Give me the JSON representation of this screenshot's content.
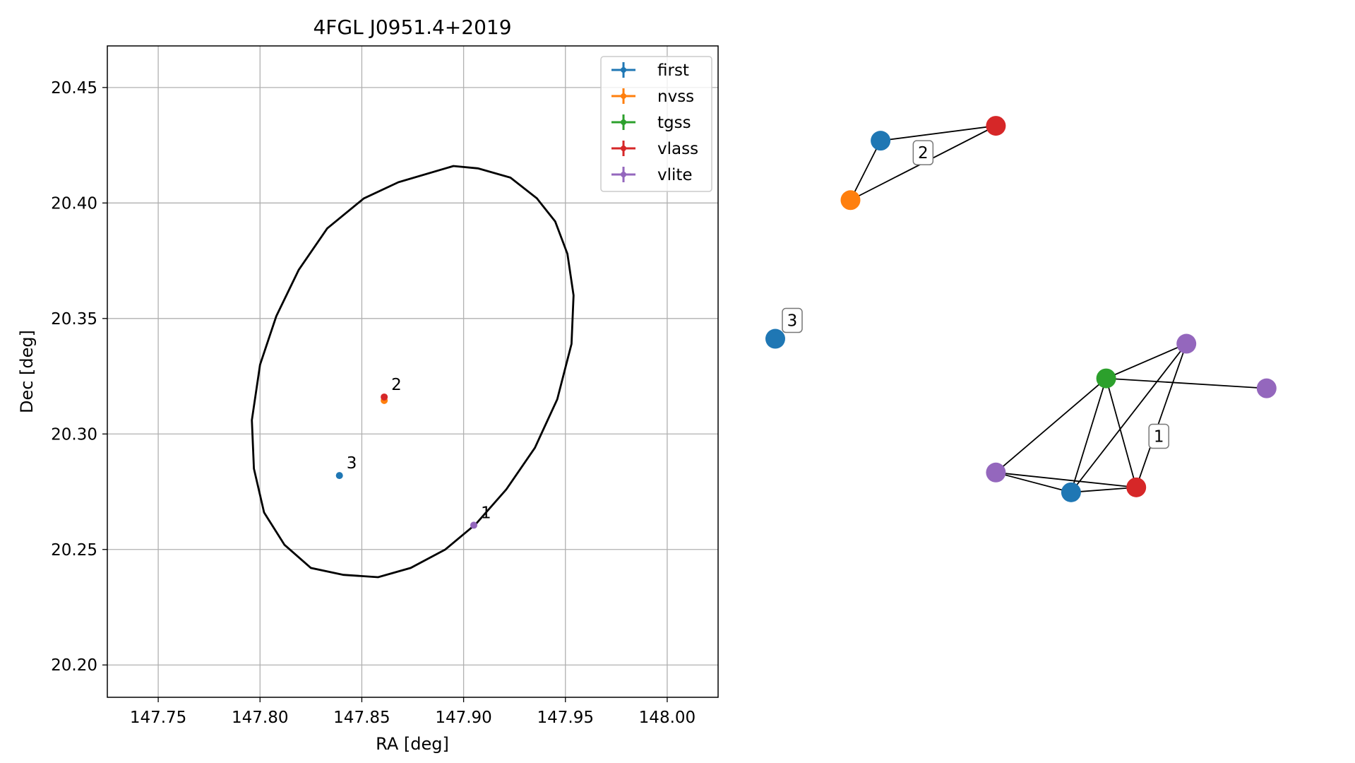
{
  "chart_data": [
    {
      "type": "scatter",
      "title": "4FGL J0951.4+2019",
      "xlabel": "RA [deg]",
      "ylabel": "Dec [deg]",
      "xlim": [
        147.725,
        148.025
      ],
      "ylim": [
        20.186,
        20.468
      ],
      "xticks": [
        147.75,
        147.8,
        147.85,
        147.9,
        147.95,
        148.0
      ],
      "xtick_labels": [
        "147.75",
        "147.80",
        "147.85",
        "147.90",
        "147.95",
        "148.00"
      ],
      "yticks": [
        20.2,
        20.25,
        20.3,
        20.35,
        20.4,
        20.45
      ],
      "ytick_labels": [
        "20.20",
        "20.25",
        "20.30",
        "20.35",
        "20.40",
        "20.45"
      ],
      "grid": true,
      "legend_placement": "top-right",
      "colors": {
        "first": "#1f77b4",
        "nvss": "#ff7f0e",
        "tgss": "#2ca02c",
        "vlass": "#d62728",
        "vlite": "#9467bd",
        "grid": "#b0b0b0",
        "ellipse": "#000000"
      },
      "series": [
        {
          "name": "first",
          "x": [
            147.839
          ],
          "y": [
            20.282
          ]
        },
        {
          "name": "nvss",
          "x": [
            147.861
          ],
          "y": [
            20.3145
          ]
        },
        {
          "name": "tgss",
          "x": [],
          "y": []
        },
        {
          "name": "vlass",
          "x": [
            147.861
          ],
          "y": [
            20.316
          ]
        },
        {
          "name": "vlite",
          "x": [
            147.905
          ],
          "y": [
            20.2605
          ]
        }
      ],
      "annotations": [
        {
          "text": "1",
          "x": 147.905,
          "y": 20.2605
        },
        {
          "text": "2",
          "x": 147.861,
          "y": 20.316
        },
        {
          "text": "3",
          "x": 147.839,
          "y": 20.282
        }
      ],
      "ellipse": {
        "points": [
          [
            147.895,
            20.416
          ],
          [
            147.868,
            20.409
          ],
          [
            147.851,
            20.402
          ],
          [
            147.833,
            20.389
          ],
          [
            147.819,
            20.371
          ],
          [
            147.808,
            20.351
          ],
          [
            147.8,
            20.33
          ],
          [
            147.796,
            20.306
          ],
          [
            147.797,
            20.285
          ],
          [
            147.802,
            20.266
          ],
          [
            147.812,
            20.252
          ],
          [
            147.825,
            20.242
          ],
          [
            147.841,
            20.239
          ],
          [
            147.858,
            20.238
          ],
          [
            147.874,
            20.242
          ],
          [
            147.891,
            20.25
          ],
          [
            147.906,
            20.261
          ],
          [
            147.921,
            20.276
          ],
          [
            147.935,
            20.294
          ],
          [
            147.946,
            20.315
          ],
          [
            147.953,
            20.339
          ],
          [
            147.954,
            20.36
          ],
          [
            147.951,
            20.378
          ],
          [
            147.945,
            20.392
          ],
          [
            147.936,
            20.402
          ],
          [
            147.923,
            20.411
          ],
          [
            147.907,
            20.415
          ]
        ]
      }
    },
    {
      "type": "network",
      "nodes": [
        {
          "id": "a",
          "catalog": "first",
          "x": 0.21,
          "y": 0.86
        },
        {
          "id": "b",
          "catalog": "vlass",
          "x": 0.44,
          "y": 0.89
        },
        {
          "id": "c",
          "catalog": "nvss",
          "x": 0.15,
          "y": 0.74
        },
        {
          "id": "d",
          "catalog": "first",
          "x": 0.0,
          "y": 0.46
        },
        {
          "id": "e",
          "catalog": "vlite",
          "x": 0.82,
          "y": 0.45
        },
        {
          "id": "f",
          "catalog": "tgss",
          "x": 0.66,
          "y": 0.38
        },
        {
          "id": "g",
          "catalog": "vlite",
          "x": 0.98,
          "y": 0.36
        },
        {
          "id": "h",
          "catalog": "vlite",
          "x": 0.44,
          "y": 0.19
        },
        {
          "id": "i",
          "catalog": "first",
          "x": 0.59,
          "y": 0.15
        },
        {
          "id": "j",
          "catalog": "vlass",
          "x": 0.72,
          "y": 0.16
        }
      ],
      "edges": [
        [
          "a",
          "b"
        ],
        [
          "a",
          "c"
        ],
        [
          "b",
          "c"
        ],
        [
          "e",
          "f"
        ],
        [
          "e",
          "i"
        ],
        [
          "e",
          "j"
        ],
        [
          "f",
          "g"
        ],
        [
          "f",
          "h"
        ],
        [
          "f",
          "i"
        ],
        [
          "f",
          "j"
        ],
        [
          "h",
          "i"
        ],
        [
          "h",
          "j"
        ],
        [
          "i",
          "j"
        ]
      ],
      "labels": [
        {
          "text": "2",
          "group": [
            "a",
            "b",
            "c"
          ]
        },
        {
          "text": "3",
          "group": [
            "d"
          ]
        },
        {
          "text": "1",
          "group": [
            "e",
            "f",
            "g",
            "h",
            "i",
            "j"
          ]
        }
      ]
    }
  ],
  "legend": {
    "entries": [
      {
        "label": "first",
        "color": "#1f77b4"
      },
      {
        "label": "nvss",
        "color": "#ff7f0e"
      },
      {
        "label": "tgss",
        "color": "#2ca02c"
      },
      {
        "label": "vlass",
        "color": "#d62728"
      },
      {
        "label": "vlite",
        "color": "#9467bd"
      }
    ]
  }
}
